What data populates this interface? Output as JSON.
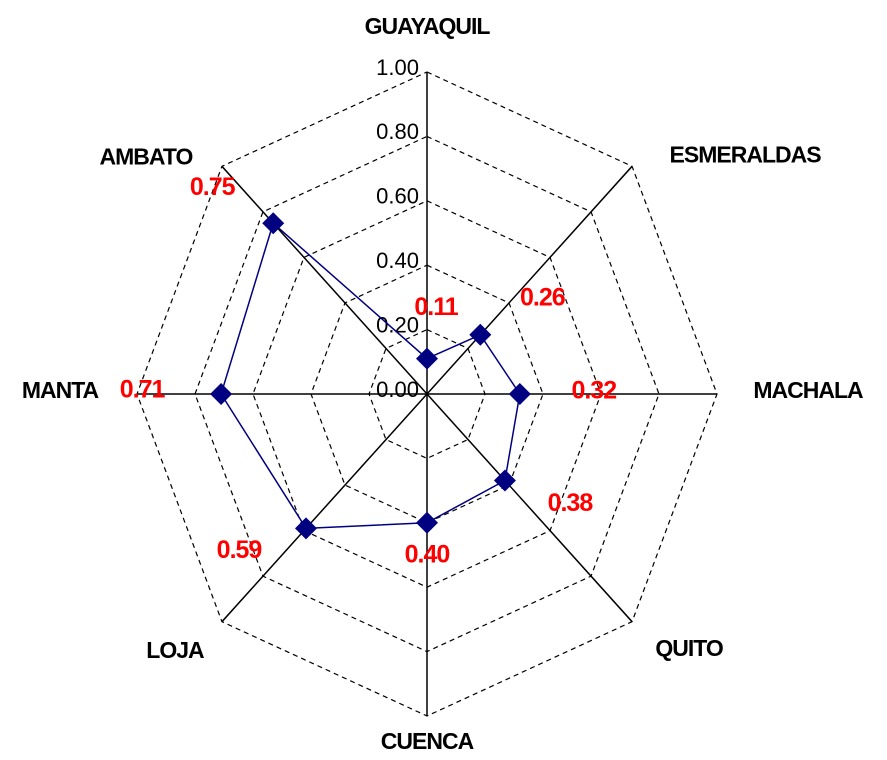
{
  "chart_data": {
    "type": "radar",
    "categories": [
      "GUAYAQUIL",
      "ESMERALDAS",
      "MACHALA",
      "QUITO",
      "CUENCA",
      "LOJA",
      "MANTA",
      "AMBATO"
    ],
    "series": [
      {
        "color": "#000080",
        "values": [
          0.11,
          0.26,
          0.32,
          0.38,
          0.4,
          0.59,
          0.71,
          0.75
        ],
        "value_labels": [
          "0.11",
          "0.26",
          "0.32",
          "0.38",
          "0.40",
          "0.59",
          "0.71",
          "0.75"
        ]
      }
    ],
    "ylim": [
      0,
      1
    ],
    "yticks": [
      {
        "value": 0,
        "label": "0.00"
      },
      {
        "value": 0.2,
        "label": "0.20"
      },
      {
        "value": 0.4,
        "label": "0.40"
      },
      {
        "value": 0.6,
        "label": "0.60"
      },
      {
        "value": 0.8,
        "label": "0.80"
      },
      {
        "value": 1,
        "label": "1.00"
      }
    ],
    "grid": true,
    "value_label_color": "#ff0000"
  }
}
